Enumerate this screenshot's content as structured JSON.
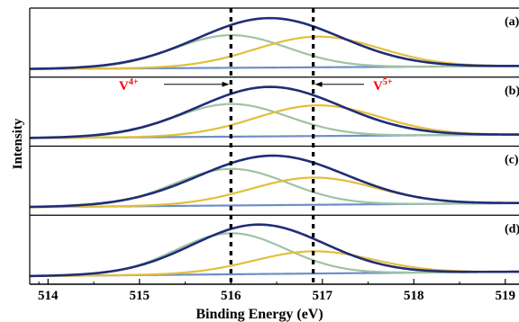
{
  "chart_data": {
    "type": "line",
    "xlabel": "Binding Energy (eV)",
    "ylabel": "Intensity",
    "xlim": [
      513.8,
      519.15
    ],
    "x_ticks": [
      514,
      515,
      516,
      517,
      518,
      519
    ],
    "x_tick_labels": [
      "514",
      "515",
      "516",
      "517",
      "518",
      "519"
    ],
    "reference_lines": [
      {
        "x": 516.0,
        "style": "dotted",
        "color": "#000000"
      },
      {
        "x": 516.9,
        "style": "dotted",
        "color": "#000000"
      }
    ],
    "annotations": [
      {
        "text": "V",
        "superscript": "4+",
        "color": "#ff0000",
        "panel": "(b)",
        "arrow_to_x": 516.0
      },
      {
        "text": "V",
        "superscript": "5+",
        "color": "#ff0000",
        "panel": "(b)",
        "arrow_to_x": 516.9
      }
    ],
    "series_colors": {
      "envelope": "#1f2d78",
      "v4_component": "#9fc3a3",
      "v5_component": "#e2bf3a",
      "background": "#6e8fc7"
    },
    "panels": [
      {
        "label": "(a)",
        "envelope": {
          "center": 516.42,
          "sigma": 0.78,
          "amplitude": 1.0
        },
        "v4": {
          "center": 516.0,
          "sigma": 0.62,
          "amplitude": 0.66
        },
        "v5": {
          "center": 516.95,
          "sigma": 0.68,
          "amplitude": 0.62
        },
        "background": {
          "start": 0.0,
          "end": 0.06
        }
      },
      {
        "label": "(b)",
        "envelope": {
          "center": 516.42,
          "sigma": 0.78,
          "amplitude": 1.0
        },
        "v4": {
          "center": 516.0,
          "sigma": 0.62,
          "amplitude": 0.66
        },
        "v5": {
          "center": 516.95,
          "sigma": 0.68,
          "amplitude": 0.62
        },
        "background": {
          "start": 0.0,
          "end": 0.07
        }
      },
      {
        "label": "(c)",
        "envelope": {
          "center": 516.45,
          "sigma": 0.8,
          "amplitude": 1.0
        },
        "v4": {
          "center": 516.0,
          "sigma": 0.62,
          "amplitude": 0.74
        },
        "v5": {
          "center": 516.9,
          "sigma": 0.68,
          "amplitude": 0.55
        },
        "background": {
          "start": 0.0,
          "end": 0.08
        }
      },
      {
        "label": "(d)",
        "envelope": {
          "center": 516.3,
          "sigma": 0.72,
          "amplitude": 1.0
        },
        "v4": {
          "center": 516.0,
          "sigma": 0.6,
          "amplitude": 0.83
        },
        "v5": {
          "center": 516.9,
          "sigma": 0.65,
          "amplitude": 0.45
        },
        "background": {
          "start": 0.0,
          "end": 0.09
        }
      }
    ]
  }
}
